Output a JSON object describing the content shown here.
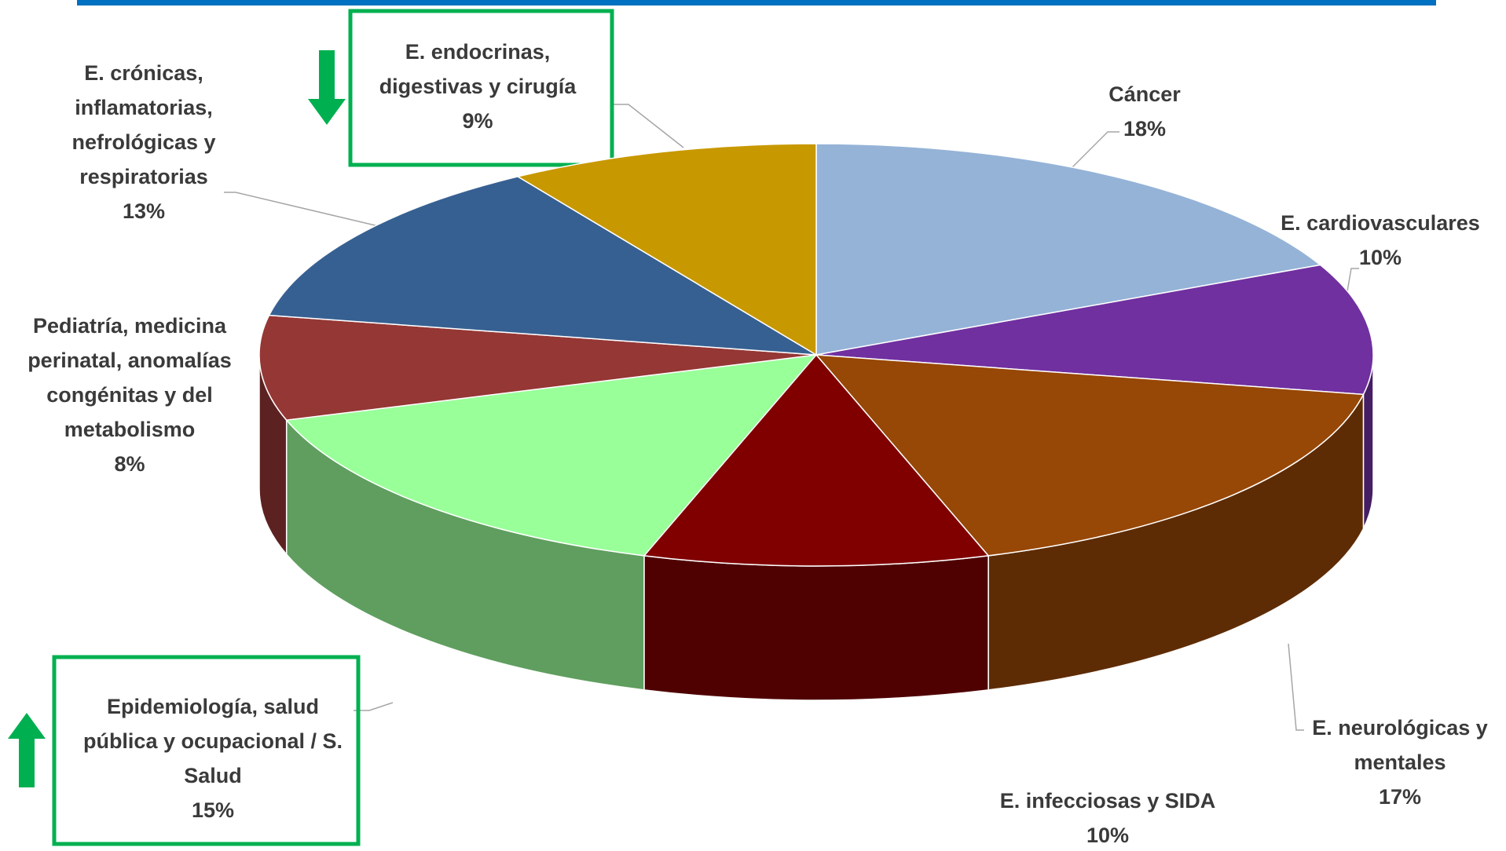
{
  "chart_data": {
    "type": "pie",
    "categories": [
      "Cáncer",
      "E. cardiovasculares",
      "E. neurológicas y mentales",
      "E. infecciosas y SIDA",
      "Epidemiología, salud pública y ocupacional / S. Salud",
      "Pediatría, medicina perinatal, anomalías congénitas y del metabolismo",
      "E. crónicas, inflamatorias, nefrológicas y respiratorias",
      "E. endocrinas, digestivas y cirugía"
    ],
    "values": [
      18,
      10,
      17,
      10,
      15,
      8,
      13,
      9
    ],
    "value_labels": [
      "18%",
      "10%",
      "17%",
      "10%",
      "15%",
      "8%",
      "13%",
      "9%"
    ],
    "colors": [
      "#95b3d7",
      "#7030a0",
      "#974706",
      "#800000",
      "#99ff99",
      "#953735",
      "#376092",
      "#c89800"
    ]
  }
}
